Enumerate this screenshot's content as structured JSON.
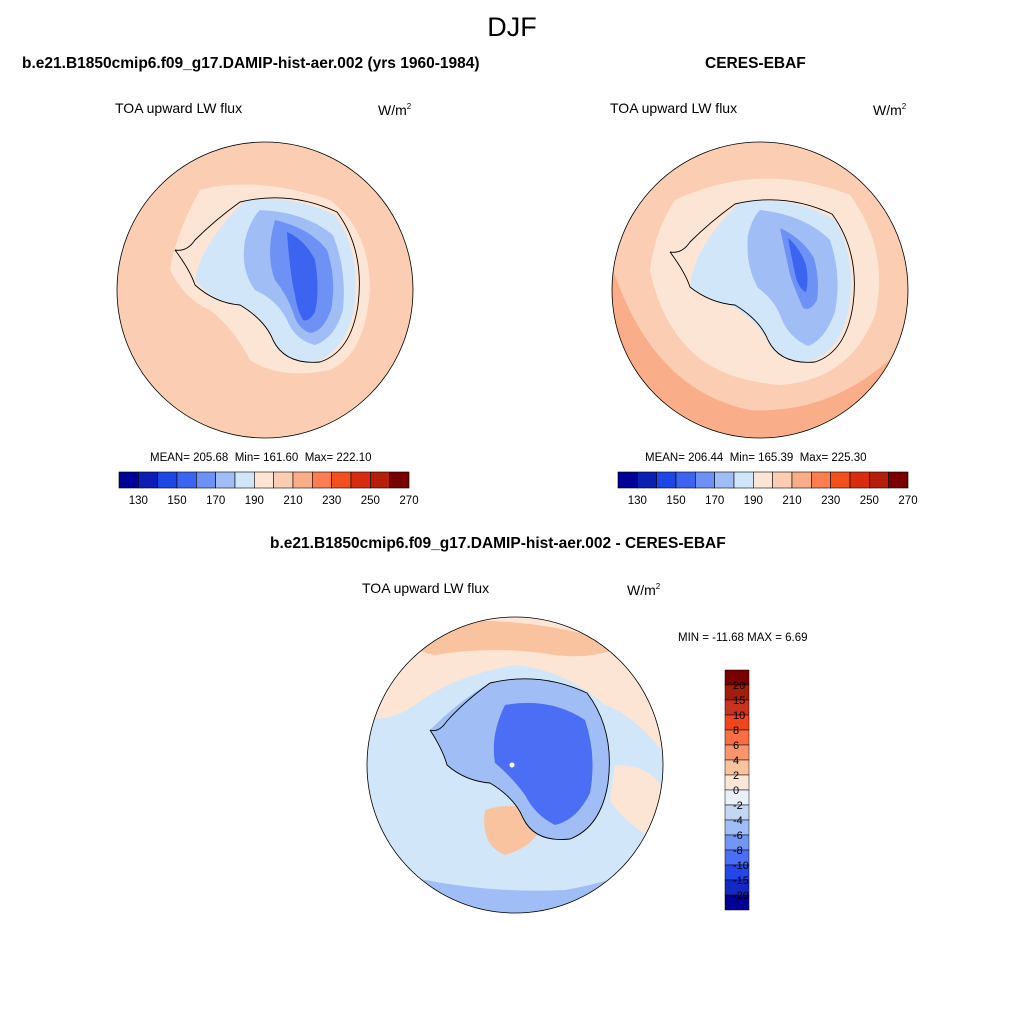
{
  "main_title": "DJF",
  "panels": [
    {
      "title": "b.e21.B1850cmip6.f09_g17.DAMIP-hist-aer.002 (yrs 1960-1984)",
      "variable": "TOA upward LW flux",
      "units_base": "W/m",
      "units_exp": "2",
      "mean_text": "MEAN= 205.68",
      "min_text": "Min= 161.60",
      "max_text": "Max= 222.10"
    },
    {
      "title": "CERES-EBAF",
      "variable": "TOA upward LW flux",
      "units_base": "W/m",
      "units_exp": "2",
      "mean_text": "MEAN= 206.44",
      "min_text": "Min= 165.39",
      "max_text": "Max= 225.30"
    },
    {
      "title": "b.e21.B1850cmip6.f09_g17.DAMIP-hist-aer.002 - CERES-EBAF",
      "variable": "TOA upward LW flux",
      "units_base": "W/m",
      "units_exp": "2",
      "minmax_text": "MIN = -11.68 MAX =   6.69"
    }
  ],
  "colorbar_top": {
    "orientation": "horizontal",
    "labels": [
      "130",
      "150",
      "170",
      "190",
      "210",
      "230",
      "250",
      "270"
    ],
    "colors": [
      "#000096",
      "#0a1eb4",
      "#1e46e6",
      "#3c64f0",
      "#6e91f5",
      "#a0bef5",
      "#d2e6fa",
      "#fde5d6",
      "#fbcdb2",
      "#f9ae89",
      "#fb7d50",
      "#f4501e",
      "#d72d0e",
      "#b41e0a",
      "#780000"
    ]
  },
  "colorbar_diff": {
    "orientation": "vertical",
    "labels": [
      "20",
      "15",
      "10",
      "8",
      "6",
      "4",
      "2",
      "0",
      "-2",
      "-4",
      "-6",
      "-8",
      "-10",
      "-15",
      "-20"
    ],
    "colors": [
      "#780000",
      "#a01e0a",
      "#c8321e",
      "#f0461e",
      "#fa6e46",
      "#fa966e",
      "#fac3a0",
      "#fce6d7",
      "#eaf0fa",
      "#c3d7f5",
      "#a0bef5",
      "#7396f5",
      "#4b6ef5",
      "#2346eb",
      "#1428c8",
      "#000096"
    ]
  },
  "map_colors": {
    "ocean_warm": "#fbcdb2",
    "ocean_light": "#fde5d6",
    "ocean_edge": "#f9ae89",
    "ice_1": "#d2e6fa",
    "ice_2": "#a0bef5",
    "ice_3": "#6e91f5",
    "ice_4": "#3c64f0",
    "diff_neg1": "#d2e6fa",
    "diff_neg2": "#a0bef5",
    "diff_neg3": "#4b6ef5",
    "diff_pos1": "#fde5d6",
    "diff_pos2": "#fac3a0"
  }
}
